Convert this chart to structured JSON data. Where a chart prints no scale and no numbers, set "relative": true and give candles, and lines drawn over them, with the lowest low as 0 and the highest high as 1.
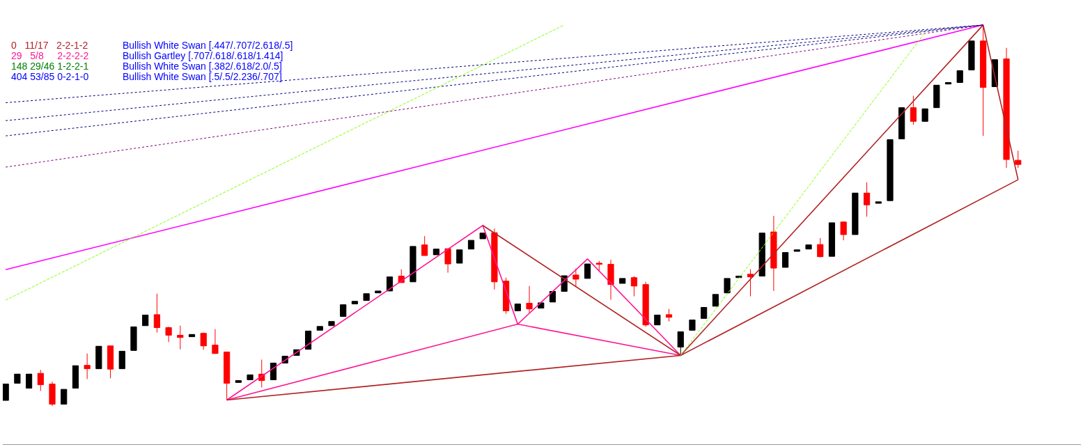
{
  "chart_data": {
    "type": "candlestick",
    "relative": true,
    "annotations": [
      "0   11/17   2-2-1-2",
      "Bullish White Swan [.447/.707/2.618/.5]",
      "29   5/8     2-2-2-2",
      "Bullish Gartley [.707/.618/.618/1.414]",
      "148 29/46 1-2-2-1",
      "Bullish White Swan [.382/.618/2.0/.5]",
      "404 53/85 0-2-1-0",
      "Bullish White Swan [.5/.5/2.236/.707]"
    ],
    "categories": [
      null,
      null,
      null,
      null,
      null,
      null,
      null,
      null,
      null,
      null,
      null,
      null,
      null,
      null,
      null,
      null,
      null,
      null,
      null,
      null,
      null,
      null,
      null,
      null,
      null,
      null,
      null,
      null,
      null,
      null,
      null,
      null,
      null,
      null,
      null,
      null,
      null,
      null,
      null,
      null,
      null,
      null,
      null,
      null,
      null,
      null,
      null,
      null,
      null,
      null,
      null,
      null,
      null,
      null,
      null,
      null,
      null,
      null,
      null,
      null,
      null,
      null,
      null,
      null,
      null,
      null,
      null,
      null,
      null,
      null,
      null,
      null,
      null,
      null,
      null,
      null,
      null,
      null,
      null,
      null,
      null,
      null,
      null,
      null,
      null,
      null,
      null,
      null
    ],
    "ohlc": [
      [
        0.015,
        0.058,
        0.015,
        0.058
      ],
      [
        0.06,
        0.084,
        0.06,
        0.084
      ],
      [
        0.047,
        0.084,
        0.047,
        0.084
      ],
      [
        0.086,
        0.095,
        0.04,
        0.056
      ],
      [
        0.058,
        0.064,
        0,
        0.005
      ],
      [
        0.005,
        0.044,
        0.005,
        0.044
      ],
      [
        0.047,
        0.106,
        0.047,
        0.106
      ],
      [
        0.107,
        0.138,
        0.071,
        0.098
      ],
      [
        0.098,
        0.157,
        0.098,
        0.157
      ],
      [
        0.158,
        0.158,
        0.073,
        0.097
      ],
      [
        0.098,
        0.144,
        0.098,
        0.144
      ],
      [
        0.146,
        0.208,
        0.146,
        0.208
      ],
      [
        0.211,
        0.239,
        0.211,
        0.239
      ],
      [
        0.24,
        0.295,
        0.193,
        0.206
      ],
      [
        0.206,
        0.208,
        0.168,
        0.186
      ],
      [
        0.186,
        0.211,
        0.149,
        0.18
      ],
      [
        0.182,
        0.188,
        0.182,
        0.188
      ],
      [
        0.191,
        0.193,
        0.148,
        0.158
      ],
      [
        0.16,
        0.202,
        0.137,
        0.138
      ],
      [
        0.142,
        0.142,
        0.016,
        0.06
      ],
      [
        0.062,
        0.067,
        0.062,
        0.067
      ],
      [
        0.069,
        0.082,
        0.069,
        0.082
      ],
      [
        0.084,
        0.122,
        0.049,
        0.067
      ],
      [
        0.069,
        0.113,
        0.069,
        0.113
      ],
      [
        0.113,
        0.131,
        0.113,
        0.131
      ],
      [
        0.133,
        0.148,
        0.133,
        0.148
      ],
      [
        0.149,
        0.197,
        0.149,
        0.197
      ],
      [
        0.199,
        0.209,
        0.199,
        0.209
      ],
      [
        0.211,
        0.222,
        0.211,
        0.222
      ],
      [
        0.235,
        0.266,
        0.235,
        0.266
      ],
      [
        0.268,
        0.275,
        0.268,
        0.275
      ],
      [
        0.277,
        0.295,
        0.277,
        0.295
      ],
      [
        0.297,
        0.302,
        0.297,
        0.302
      ],
      [
        0.302,
        0.339,
        0.302,
        0.339
      ],
      [
        0.341,
        0.359,
        0.324,
        0.324
      ],
      [
        0.326,
        0.419,
        0.326,
        0.419
      ],
      [
        0.423,
        0.446,
        0.395,
        0.395
      ],
      [
        0.397,
        0.412,
        0.397,
        0.412
      ],
      [
        0.413,
        0.413,
        0.35,
        0.373
      ],
      [
        0.375,
        0.41,
        0.375,
        0.41
      ],
      [
        0.412,
        0.435,
        0.412,
        0.435
      ],
      [
        0.439,
        0.454,
        0.439,
        0.454
      ],
      [
        0.455,
        0.466,
        0.306,
        0.326
      ],
      [
        0.328,
        0.337,
        0.242,
        0.25
      ],
      [
        0.25,
        0.268,
        0.25,
        0.268
      ],
      [
        0.27,
        0.315,
        0.244,
        0.255
      ],
      [
        0.257,
        0.271,
        0.257,
        0.271
      ],
      [
        0.273,
        0.301,
        0.273,
        0.301
      ],
      [
        0.301,
        0.342,
        0.301,
        0.342
      ],
      [
        0.344,
        0.361,
        0.313,
        0.333
      ],
      [
        0.335,
        0.373,
        0.335,
        0.373
      ],
      [
        0.375,
        0.381,
        0.353,
        0.372
      ],
      [
        0.372,
        0.384,
        0.279,
        0.319
      ],
      [
        0.322,
        0.335,
        0.322,
        0.335
      ],
      [
        0.337,
        0.341,
        0.288,
        0.315
      ],
      [
        0.319,
        0.326,
        0.208,
        0.213
      ],
      [
        0.213,
        0.239,
        0.213,
        0.239
      ],
      [
        0.24,
        0.255,
        0.222,
        0.233
      ],
      [
        0.155,
        0.195,
        0.133,
        0.195
      ],
      [
        0.199,
        0.226,
        0.199,
        0.226
      ],
      [
        0.23,
        0.259,
        0.23,
        0.259
      ],
      [
        0.262,
        0.293,
        0.262,
        0.293
      ],
      [
        0.297,
        0.335,
        0.297,
        0.335
      ],
      [
        0.337,
        0.341,
        0.337,
        0.341
      ],
      [
        0.346,
        0.359,
        0.288,
        0.339
      ],
      [
        0.341,
        0.454,
        0.341,
        0.454
      ],
      [
        0.457,
        0.499,
        0.302,
        0.362
      ],
      [
        0.364,
        0.403,
        0.364,
        0.403
      ],
      [
        0.406,
        0.41,
        0.406,
        0.41
      ],
      [
        0.412,
        0.423,
        0.412,
        0.423
      ],
      [
        0.424,
        0.441,
        0.39,
        0.392
      ],
      [
        0.393,
        0.481,
        0.393,
        0.481
      ],
      [
        0.483,
        0.485,
        0.435,
        0.45
      ],
      [
        0.45,
        0.559,
        0.45,
        0.559
      ],
      [
        0.559,
        0.587,
        0.497,
        0.528
      ],
      [
        0.532,
        0.536,
        0.532,
        0.536
      ],
      [
        0.539,
        0.699,
        0.539,
        0.699
      ],
      [
        0.701,
        0.783,
        0.701,
        0.783
      ],
      [
        0.783,
        0.814,
        0.738,
        0.747
      ],
      [
        0.747,
        0.78,
        0.747,
        0.78
      ],
      [
        0.783,
        0.842,
        0.783,
        0.842
      ],
      [
        0.845,
        0.849,
        0.845,
        0.849
      ],
      [
        0.849,
        0.88,
        0.849,
        0.88
      ],
      [
        0.882,
        0.958,
        0.882,
        0.958
      ],
      [
        0.958,
        1,
        0.709,
        0.836
      ],
      [
        0.838,
        0.909,
        0.838,
        0.909
      ],
      [
        0.911,
        0.94,
        0.625,
        0.647
      ],
      [
        0.645,
        0.67,
        0.625,
        0.634
      ]
    ],
    "colors": [
      "#000000",
      "#000000",
      "#000000",
      "#ff0000",
      "#ff0000",
      "#000000",
      "#000000",
      "#ff0000",
      "#000000",
      "#ff0000",
      "#000000",
      "#000000",
      "#000000",
      "#ff0000",
      "#ff0000",
      "#ff0000",
      "#000000",
      "#ff0000",
      "#ff0000",
      "#ff0000",
      "#000000",
      "#000000",
      "#ff0000",
      "#000000",
      "#000000",
      "#000000",
      "#000000",
      "#000000",
      "#000000",
      "#000000",
      "#000000",
      "#000000",
      "#000000",
      "#000000",
      "#ff0000",
      "#000000",
      "#ff0000",
      "#000000",
      "#ff0000",
      "#000000",
      "#000000",
      "#000000",
      "#ff0000",
      "#ff0000",
      "#000000",
      "#ff0000",
      "#000000",
      "#000000",
      "#000000",
      "#ff0000",
      "#000000",
      "#ff0000",
      "#ff0000",
      "#000000",
      "#ff0000",
      "#ff0000",
      "#000000",
      "#ff0000",
      "#000000",
      "#000000",
      "#000000",
      "#000000",
      "#000000",
      "#000000",
      "#ff0000",
      "#000000",
      "#ff0000",
      "#000000",
      "#000000",
      "#000000",
      "#ff0000",
      "#000000",
      "#ff0000",
      "#000000",
      "#ff0000",
      "#000000",
      "#000000",
      "#000000",
      "#ff0000",
      "#000000",
      "#000000",
      "#000000",
      "#000000",
      "#000000",
      "#ff0000",
      "#000000",
      "#ff0000",
      "#ff0000"
    ],
    "series": [
      {
        "type": "line",
        "color": "#000080",
        "line_style": "dotted",
        "values": [
          0.796,
          null,
          null,
          null,
          null,
          null,
          null,
          null,
          null,
          null,
          null,
          null,
          null,
          null,
          null,
          null,
          null,
          null,
          null,
          null,
          null,
          null,
          null,
          null,
          null,
          null,
          null,
          null,
          null,
          null,
          null,
          null,
          null,
          null,
          null,
          null,
          null,
          null,
          null,
          null,
          null,
          null,
          null,
          null,
          null,
          null,
          null,
          null,
          null,
          null,
          null,
          null,
          null,
          null,
          null,
          null,
          null,
          null,
          null,
          null,
          null,
          null,
          null,
          null,
          null,
          null,
          null,
          null,
          null,
          null,
          null,
          null,
          null,
          null,
          null,
          null,
          null,
          null,
          null,
          null,
          null,
          null,
          null,
          null,
          1,
          null,
          null,
          null
        ]
      },
      {
        "type": "line",
        "color": "#000080",
        "line_style": "dotted",
        "values": [
          0.749,
          null,
          null,
          null,
          null,
          null,
          null,
          null,
          null,
          null,
          null,
          null,
          null,
          null,
          null,
          null,
          null,
          null,
          null,
          null,
          null,
          null,
          null,
          null,
          null,
          null,
          null,
          null,
          null,
          null,
          null,
          null,
          null,
          null,
          null,
          null,
          null,
          null,
          null,
          null,
          null,
          null,
          null,
          null,
          null,
          null,
          null,
          null,
          null,
          null,
          null,
          null,
          null,
          null,
          null,
          null,
          null,
          null,
          null,
          null,
          null,
          null,
          null,
          null,
          null,
          null,
          null,
          null,
          null,
          null,
          null,
          null,
          null,
          null,
          null,
          null,
          null,
          null,
          null,
          null,
          null,
          null,
          null,
          null,
          1,
          null,
          null,
          null
        ]
      },
      {
        "type": "line",
        "color": "#000080",
        "line_style": "dotted",
        "values": [
          0.709,
          null,
          null,
          null,
          null,
          null,
          null,
          null,
          null,
          null,
          null,
          null,
          null,
          null,
          null,
          null,
          null,
          null,
          null,
          null,
          null,
          null,
          null,
          null,
          null,
          null,
          null,
          null,
          null,
          null,
          null,
          null,
          null,
          null,
          null,
          null,
          null,
          null,
          null,
          null,
          null,
          null,
          null,
          null,
          null,
          null,
          null,
          null,
          null,
          null,
          null,
          null,
          null,
          null,
          null,
          null,
          null,
          null,
          null,
          null,
          null,
          null,
          null,
          null,
          null,
          null,
          null,
          null,
          null,
          null,
          null,
          null,
          null,
          null,
          null,
          null,
          null,
          null,
          null,
          null,
          null,
          null,
          null,
          null,
          1,
          null,
          null,
          null
        ]
      },
      {
        "type": "line",
        "color": "#800080",
        "line_style": "dotted",
        "values": [
          0.627,
          null,
          null,
          null,
          null,
          null,
          null,
          null,
          null,
          null,
          null,
          null,
          null,
          null,
          null,
          null,
          null,
          null,
          null,
          null,
          null,
          null,
          null,
          null,
          null,
          null,
          null,
          null,
          null,
          null,
          null,
          null,
          null,
          null,
          null,
          null,
          null,
          null,
          null,
          null,
          null,
          null,
          null,
          null,
          null,
          null,
          null,
          null,
          null,
          null,
          null,
          null,
          null,
          null,
          null,
          null,
          null,
          null,
          null,
          null,
          null,
          null,
          null,
          null,
          null,
          null,
          null,
          null,
          null,
          null,
          null,
          null,
          null,
          null,
          null,
          null,
          null,
          null,
          null,
          null,
          null,
          null,
          null,
          null,
          1,
          null,
          null,
          null
        ]
      },
      {
        "type": "line",
        "color": "#ff00ff",
        "line_style": "solid",
        "values": [
          0.358,
          null,
          null,
          null,
          null,
          null,
          null,
          null,
          null,
          null,
          null,
          null,
          null,
          null,
          null,
          null,
          null,
          null,
          null,
          null,
          null,
          null,
          null,
          null,
          null,
          null,
          null,
          null,
          null,
          null,
          null,
          null,
          null,
          null,
          null,
          null,
          null,
          null,
          null,
          null,
          null,
          null,
          null,
          null,
          null,
          null,
          null,
          null,
          null,
          null,
          null,
          null,
          null,
          null,
          null,
          null,
          null,
          null,
          null,
          null,
          null,
          null,
          null,
          null,
          null,
          null,
          null,
          null,
          null,
          null,
          null,
          null,
          null,
          null,
          null,
          null,
          null,
          null,
          null,
          null,
          null,
          null,
          null,
          null,
          1,
          null,
          null,
          null
        ]
      },
      {
        "type": "line",
        "color": "#7fff00",
        "line_style": "dashed",
        "values": [
          0.278,
          null,
          null,
          null,
          null,
          null,
          null,
          null,
          null,
          null,
          null,
          null,
          null,
          null,
          null,
          null,
          null,
          null,
          null,
          null,
          null,
          null,
          null,
          null,
          null,
          null,
          null,
          null,
          null,
          null,
          null,
          null,
          null,
          null,
          null,
          null,
          null,
          null,
          null,
          null,
          null,
          null,
          null,
          null,
          null,
          null,
          null,
          null,
          1,
          null,
          null,
          null,
          null,
          null,
          null,
          null,
          null,
          null,
          null,
          null,
          null,
          null,
          null,
          null,
          null,
          null,
          null,
          null,
          null,
          null,
          null,
          null,
          null,
          null,
          null,
          null,
          null,
          null,
          null,
          null,
          null,
          null,
          null,
          null,
          null,
          null,
          null,
          null
        ]
      },
      {
        "type": "line",
        "color": "#7fff00",
        "line_style": "dashed",
        "values": [
          null,
          null,
          null,
          null,
          null,
          null,
          null,
          null,
          null,
          null,
          null,
          null,
          null,
          null,
          null,
          null,
          null,
          null,
          null,
          null,
          null,
          null,
          null,
          null,
          null,
          null,
          null,
          null,
          null,
          null,
          null,
          null,
          null,
          null,
          null,
          null,
          null,
          null,
          null,
          null,
          null,
          null,
          null,
          null,
          null,
          null,
          null,
          null,
          null,
          null,
          null,
          null,
          null,
          null,
          null,
          null,
          null,
          null,
          0.133,
          null,
          null,
          null,
          null,
          null,
          null,
          null,
          null,
          null,
          null,
          null,
          null,
          null,
          null,
          null,
          null,
          null,
          null,
          null,
          null,
          0.98,
          null,
          null,
          null,
          null,
          null,
          null,
          null,
          null
        ]
      },
      {
        "type": "line",
        "color": "#ff1493",
        "line_style": "solid",
        "values": [
          null,
          null,
          null,
          null,
          null,
          null,
          null,
          null,
          null,
          null,
          null,
          null,
          null,
          null,
          null,
          null,
          null,
          null,
          null,
          0.016,
          null,
          null,
          null,
          null,
          null,
          null,
          null,
          null,
          null,
          null,
          null,
          null,
          null,
          null,
          null,
          null,
          null,
          null,
          null,
          null,
          null,
          0.474,
          null,
          null,
          0.215,
          null,
          null,
          null,
          null,
          null,
          0.386,
          null,
          null,
          null,
          null,
          null,
          null,
          null,
          0.133,
          null,
          null,
          null,
          null,
          null,
          null,
          null,
          null,
          null,
          null,
          null,
          null,
          null,
          null,
          null,
          null,
          null,
          null,
          null,
          null,
          null,
          null,
          null,
          null,
          null,
          null,
          null,
          null,
          null
        ]
      },
      {
        "type": "line",
        "color": "#ff1493",
        "line_style": "solid",
        "values": [
          null,
          null,
          null,
          null,
          null,
          null,
          null,
          null,
          null,
          null,
          null,
          null,
          null,
          null,
          null,
          null,
          null,
          null,
          null,
          0.016,
          null,
          null,
          null,
          null,
          null,
          null,
          null,
          null,
          null,
          null,
          null,
          null,
          null,
          null,
          null,
          null,
          null,
          null,
          null,
          null,
          null,
          null,
          null,
          null,
          0.215,
          null,
          null,
          null,
          null,
          null,
          null,
          null,
          null,
          null,
          null,
          null,
          null,
          null,
          0.133,
          null,
          null,
          null,
          null,
          null,
          null,
          null,
          null,
          null,
          null,
          null,
          null,
          null,
          null,
          null,
          null,
          null,
          null,
          null,
          null,
          null,
          null,
          null,
          null,
          null,
          null,
          null,
          null,
          null
        ]
      },
      {
        "type": "line",
        "color": "#b22222",
        "line_style": "solid",
        "values": [
          null,
          null,
          null,
          null,
          null,
          null,
          null,
          null,
          null,
          null,
          null,
          null,
          null,
          null,
          null,
          null,
          null,
          null,
          null,
          0.016,
          null,
          null,
          null,
          null,
          null,
          null,
          null,
          null,
          null,
          null,
          null,
          null,
          null,
          null,
          null,
          null,
          null,
          null,
          null,
          null,
          null,
          null,
          null,
          null,
          null,
          null,
          null,
          null,
          null,
          null,
          null,
          null,
          null,
          null,
          null,
          null,
          null,
          null,
          0.133,
          null,
          null,
          null,
          null,
          null,
          null,
          null,
          null,
          null,
          null,
          null,
          null,
          null,
          null,
          null,
          null,
          null,
          null,
          null,
          null,
          null,
          null,
          null,
          null,
          null,
          1,
          null,
          null,
          0.594
        ]
      },
      {
        "type": "line",
        "color": "#b22222",
        "line_style": "solid",
        "values": [
          null,
          null,
          null,
          null,
          null,
          null,
          null,
          null,
          null,
          null,
          null,
          null,
          null,
          null,
          null,
          null,
          null,
          null,
          null,
          null,
          null,
          null,
          null,
          null,
          null,
          null,
          null,
          null,
          null,
          null,
          null,
          null,
          null,
          null,
          null,
          null,
          null,
          null,
          null,
          null,
          null,
          0.474,
          null,
          null,
          null,
          null,
          null,
          null,
          null,
          null,
          null,
          null,
          null,
          null,
          null,
          null,
          null,
          null,
          0.133,
          null,
          null,
          null,
          null,
          null,
          null,
          null,
          null,
          null,
          null,
          null,
          null,
          null,
          null,
          null,
          null,
          null,
          null,
          null,
          null,
          null,
          null,
          null,
          null,
          null,
          null,
          null,
          null,
          null
        ]
      },
      {
        "type": "line",
        "color": "#b22222",
        "line_style": "solid",
        "values": [
          null,
          null,
          null,
          null,
          null,
          null,
          null,
          null,
          null,
          null,
          null,
          null,
          null,
          null,
          null,
          null,
          null,
          null,
          null,
          null,
          null,
          null,
          null,
          null,
          null,
          null,
          null,
          null,
          null,
          null,
          null,
          null,
          null,
          null,
          null,
          null,
          null,
          null,
          null,
          null,
          null,
          null,
          null,
          null,
          null,
          null,
          null,
          null,
          null,
          null,
          null,
          null,
          null,
          null,
          null,
          null,
          null,
          null,
          0.133,
          null,
          null,
          null,
          null,
          null,
          null,
          null,
          null,
          null,
          null,
          null,
          null,
          null,
          null,
          null,
          null,
          null,
          null,
          null,
          null,
          null,
          null,
          null,
          null,
          null,
          null,
          null,
          null,
          0.594
        ]
      }
    ]
  }
}
